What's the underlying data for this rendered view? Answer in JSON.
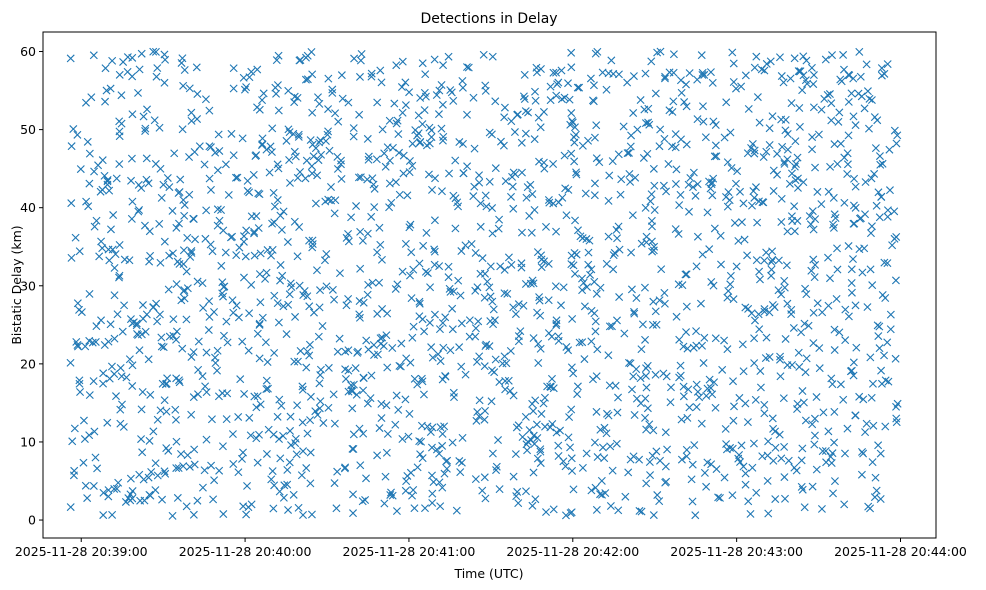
{
  "chart_data": {
    "type": "scatter",
    "title": "Detections in Delay",
    "xlabel": "Time (UTC)",
    "ylabel": "Bistatic Delay (km)",
    "xlim": [
      "2025-11-28 20:38:46",
      "2025-11-28 20:44:13"
    ],
    "ylim": [
      -2.3,
      62.5
    ],
    "xticks": [
      "2025-11-28 20:39:00",
      "2025-11-28 20:40:00",
      "2025-11-28 20:41:00",
      "2025-11-28 20:42:00",
      "2025-11-28 20:43:00",
      "2025-11-28 20:44:00"
    ],
    "yticks": [
      0,
      10,
      20,
      30,
      40,
      50,
      60
    ],
    "grid": false,
    "marker": "x",
    "series_color": "#1f77b4",
    "x_range": [
      "2025-11-28 20:38:56",
      "2025-11-28 20:43:59"
    ],
    "y_range": [
      0.5,
      60
    ],
    "point_count": 2000
  }
}
